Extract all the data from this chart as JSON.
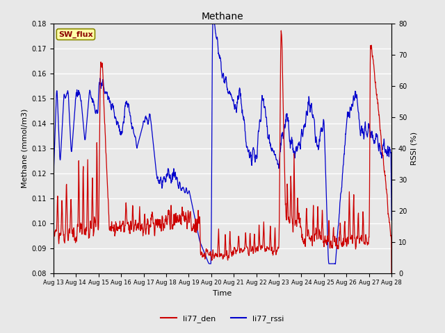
{
  "title": "Methane",
  "ylabel_left": "Methane (mmol/m3)",
  "ylabel_right": "RSSI (%)",
  "xlabel": "Time",
  "ylim_left": [
    0.08,
    0.18
  ],
  "ylim_right": [
    0,
    80
  ],
  "yticks_left": [
    0.08,
    0.09,
    0.1,
    0.11,
    0.12,
    0.13,
    0.14,
    0.15,
    0.16,
    0.17,
    0.18
  ],
  "yticks_right": [
    0,
    10,
    20,
    30,
    40,
    50,
    60,
    70,
    80
  ],
  "xtick_labels": [
    "Aug 13",
    "Aug 14",
    "Aug 15",
    "Aug 16",
    "Aug 17",
    "Aug 18",
    "Aug 19",
    "Aug 20",
    "Aug 21",
    "Aug 22",
    "Aug 23",
    "Aug 24",
    "Aug 25",
    "Aug 26",
    "Aug 27",
    "Aug 28"
  ],
  "color_den": "#cc0000",
  "color_rssi": "#0000cc",
  "legend_labels": [
    "li77_den",
    "li77_rssi"
  ],
  "sw_flux_label": "SW_flux",
  "plot_bg": "#e8e8e8",
  "fig_bg": "#e8e8e8",
  "grid_color": "#ffffff",
  "seed": 42
}
